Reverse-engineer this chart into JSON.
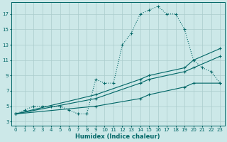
{
  "xlabel": "Humidex (Indice chaleur)",
  "bg_color": "#cce8e8",
  "grid_color": "#aacccc",
  "line_color": "#006666",
  "xlim": [
    -0.5,
    23.5
  ],
  "ylim": [
    2.5,
    18.5
  ],
  "xticks": [
    0,
    1,
    2,
    3,
    4,
    5,
    6,
    7,
    8,
    9,
    10,
    11,
    12,
    13,
    14,
    15,
    16,
    17,
    18,
    19,
    20,
    21,
    22,
    23
  ],
  "yticks": [
    3,
    5,
    7,
    9,
    11,
    13,
    15,
    17
  ],
  "series1_x": [
    0,
    1,
    2,
    3,
    4,
    5,
    6,
    7,
    8,
    9,
    10,
    11,
    12,
    13,
    14,
    15,
    16,
    17,
    18,
    19,
    20,
    21,
    22,
    23
  ],
  "series1_y": [
    4,
    4.5,
    5,
    5,
    5,
    5,
    4.5,
    4,
    4,
    8.5,
    8,
    8,
    13,
    14.5,
    17,
    17.5,
    18,
    17,
    17,
    15,
    11,
    10,
    9.5,
    8
  ],
  "series2_x": [
    0,
    9,
    14,
    15,
    19,
    20,
    23
  ],
  "series2_y": [
    4,
    6.5,
    8.5,
    9,
    10,
    11,
    12.5
  ],
  "series3_x": [
    0,
    9,
    14,
    15,
    19,
    20,
    23
  ],
  "series3_y": [
    4,
    6,
    8,
    8.5,
    9.5,
    10,
    11.5
  ],
  "series4_x": [
    0,
    9,
    14,
    15,
    19,
    20,
    23
  ],
  "series4_y": [
    4,
    5,
    6,
    6.5,
    7.5,
    8,
    8
  ],
  "marker": "+"
}
